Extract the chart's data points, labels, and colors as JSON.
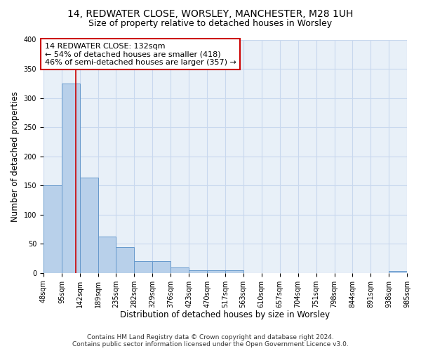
{
  "title_line1": "14, REDWATER CLOSE, WORSLEY, MANCHESTER, M28 1UH",
  "title_line2": "Size of property relative to detached houses in Worsley",
  "xlabel": "Distribution of detached houses by size in Worsley",
  "ylabel": "Number of detached properties",
  "bin_edges": [
    48,
    95,
    142,
    189,
    235,
    282,
    329,
    376,
    423,
    470,
    517,
    563,
    610,
    657,
    704,
    751,
    798,
    844,
    891,
    938,
    985
  ],
  "bar_heights": [
    150,
    325,
    163,
    62,
    44,
    20,
    20,
    9,
    4,
    4,
    4,
    0,
    0,
    0,
    0,
    0,
    0,
    0,
    0,
    3
  ],
  "bar_color": "#b8d0ea",
  "bar_edge_color": "#6699cc",
  "grid_color": "#c8d8ee",
  "background_color": "#e8f0f8",
  "property_line_x": 132,
  "property_line_color": "#cc0000",
  "annotation_text": "14 REDWATER CLOSE: 132sqm\n← 54% of detached houses are smaller (418)\n46% of semi-detached houses are larger (357) →",
  "annotation_box_color": "#ffffff",
  "annotation_box_edge": "#cc0000",
  "ylim": [
    0,
    400
  ],
  "yticks": [
    0,
    50,
    100,
    150,
    200,
    250,
    300,
    350,
    400
  ],
  "footer_line1": "Contains HM Land Registry data © Crown copyright and database right 2024.",
  "footer_line2": "Contains public sector information licensed under the Open Government Licence v3.0.",
  "title_fontsize": 10,
  "subtitle_fontsize": 9,
  "axis_label_fontsize": 8.5,
  "tick_fontsize": 7,
  "annotation_fontsize": 8,
  "footer_fontsize": 6.5
}
